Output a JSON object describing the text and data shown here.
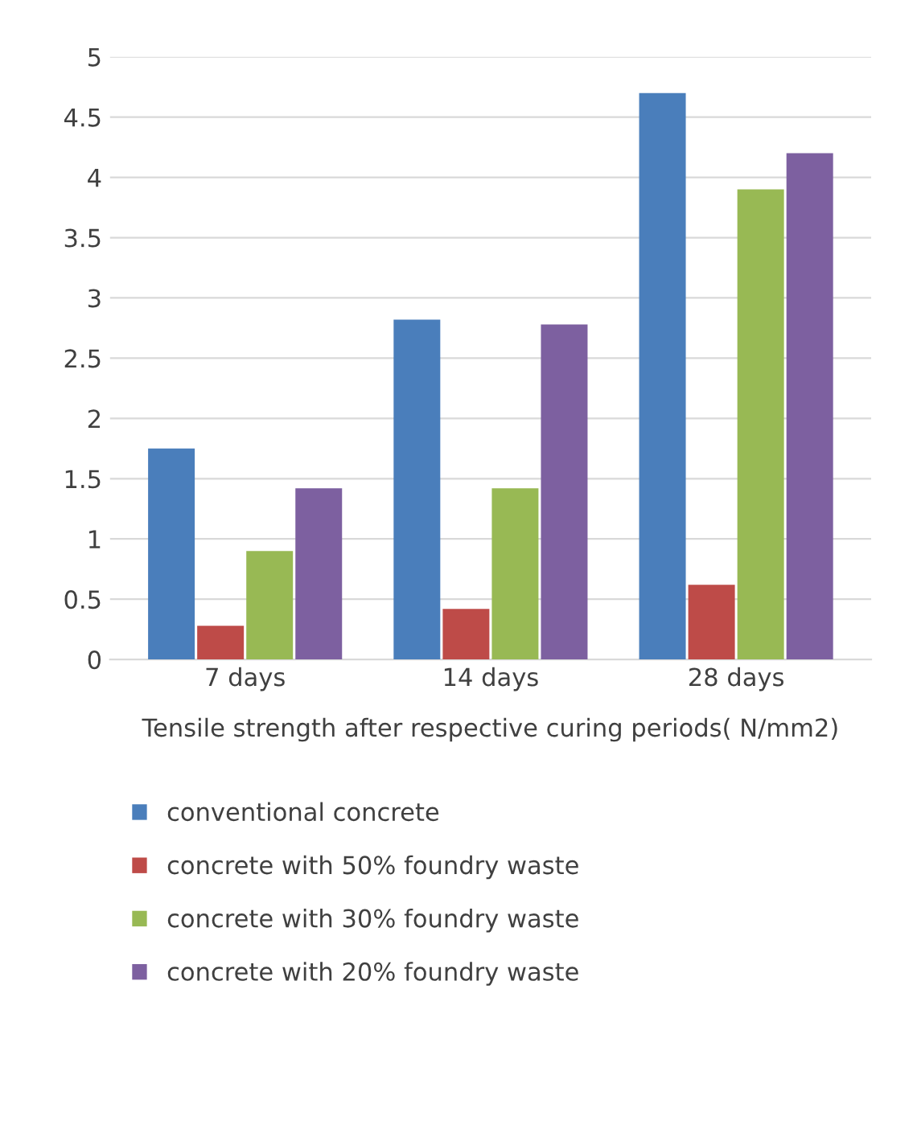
{
  "chart_data": {
    "type": "bar",
    "xlabel": "Tensile strength after respective curing periods( N/mm2)",
    "categories": [
      "7 days",
      "14 days",
      "28 days"
    ],
    "series": [
      {
        "name": "conventional concrete",
        "color": "#4a7ebb",
        "values": [
          1.75,
          2.82,
          4.7
        ]
      },
      {
        "name": "concrete with 50% foundry waste",
        "color": "#be4b48",
        "values": [
          0.28,
          0.42,
          0.62
        ]
      },
      {
        "name": "concrete with 30% foundry waste",
        "color": "#98b954",
        "values": [
          0.9,
          1.42,
          3.9
        ]
      },
      {
        "name": "concrete with 20% foundry waste",
        "color": "#7d60a0",
        "values": [
          1.42,
          2.78,
          4.2
        ]
      }
    ],
    "ylim": [
      0,
      5
    ],
    "yticks": [
      0,
      0.5,
      1,
      1.5,
      2,
      2.5,
      3,
      3.5,
      4,
      4.5,
      5
    ],
    "grid": "y",
    "legend": "bottom"
  }
}
